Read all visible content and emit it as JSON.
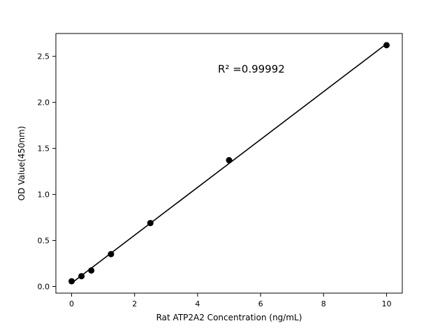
{
  "chart_data": {
    "type": "scatter",
    "title": "",
    "xlabel": "Rat ATP2A2 Concentration (ng/mL)",
    "ylabel": "OD Value(450nm)",
    "annotation": "R² =0.99992",
    "x": [
      0,
      0.3125,
      0.625,
      1.25,
      2.5,
      5,
      10
    ],
    "y": [
      0.057,
      0.112,
      0.174,
      0.352,
      0.689,
      1.372,
      2.621
    ],
    "fit": "linear",
    "x_ticks": [
      0,
      2,
      4,
      6,
      8,
      10
    ],
    "y_ticks": [
      "0.0",
      "0.5",
      "1.0",
      "1.5",
      "2.0",
      "2.5"
    ],
    "xlim": [
      -0.5,
      10.5
    ],
    "ylim": [
      -0.072,
      2.748
    ],
    "grid": false,
    "legend": "none",
    "marker_color": "#000000",
    "line_color": "#000000",
    "axis_color": "#000000",
    "background": "#ffffff"
  }
}
